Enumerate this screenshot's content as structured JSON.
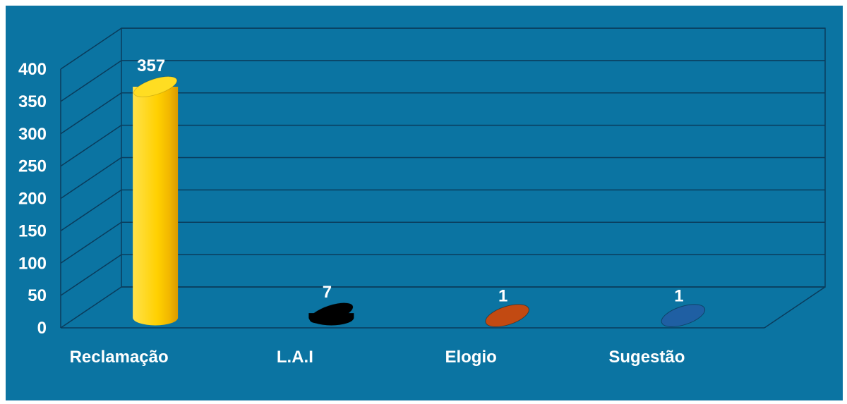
{
  "chart_data": {
    "type": "bar",
    "style": "3d-cylinder",
    "categories": [
      "Reclamação",
      "L.A.I",
      "Elogio",
      "Sugestão"
    ],
    "values": [
      357,
      7,
      1,
      1
    ],
    "data_labels": [
      "357",
      "7",
      "1",
      "1"
    ],
    "bar_colors": [
      "#ffd400",
      "#000000",
      "#c24a12",
      "#1f5fa3"
    ],
    "ylim": [
      0,
      400
    ],
    "yticks": [
      0,
      50,
      100,
      150,
      200,
      250,
      300,
      350,
      400
    ],
    "ytick_labels": [
      "0",
      "50",
      "100",
      "150",
      "200",
      "250",
      "300",
      "350",
      "400"
    ],
    "grid": true,
    "legend": "none",
    "background_color": "#0b74a2",
    "gridline_color": "#0a3c5c"
  }
}
